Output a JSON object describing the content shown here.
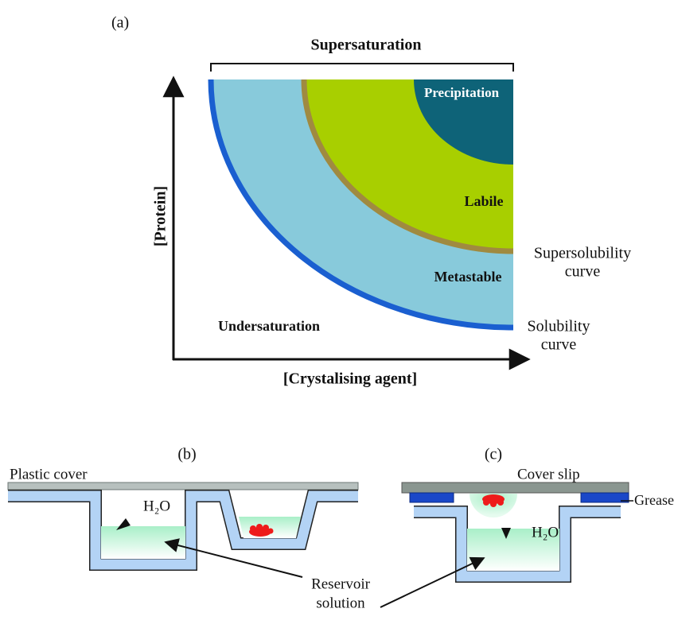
{
  "panel_a": {
    "label": "(a)",
    "supersaturation": "Supersaturation",
    "precipitation": "Precipitation",
    "labile": "Labile",
    "supersolubility_curve": [
      "Supersolubility",
      "curve"
    ],
    "metastable": "Metastable",
    "undersaturation": "Undersaturation",
    "solubility_curve": [
      "Solubility",
      "curve"
    ],
    "y_axis": "[Protein]",
    "x_axis": "[Crystalising agent]"
  },
  "panel_b": {
    "label": "(b)",
    "cover": "Plastic cover",
    "water": "H₂O"
  },
  "panel_c": {
    "label": "(c)",
    "cover": "Cover slip",
    "grease": "Grease",
    "water": "H₂O"
  },
  "reservoir": [
    "Reservoir",
    "solution"
  ]
}
